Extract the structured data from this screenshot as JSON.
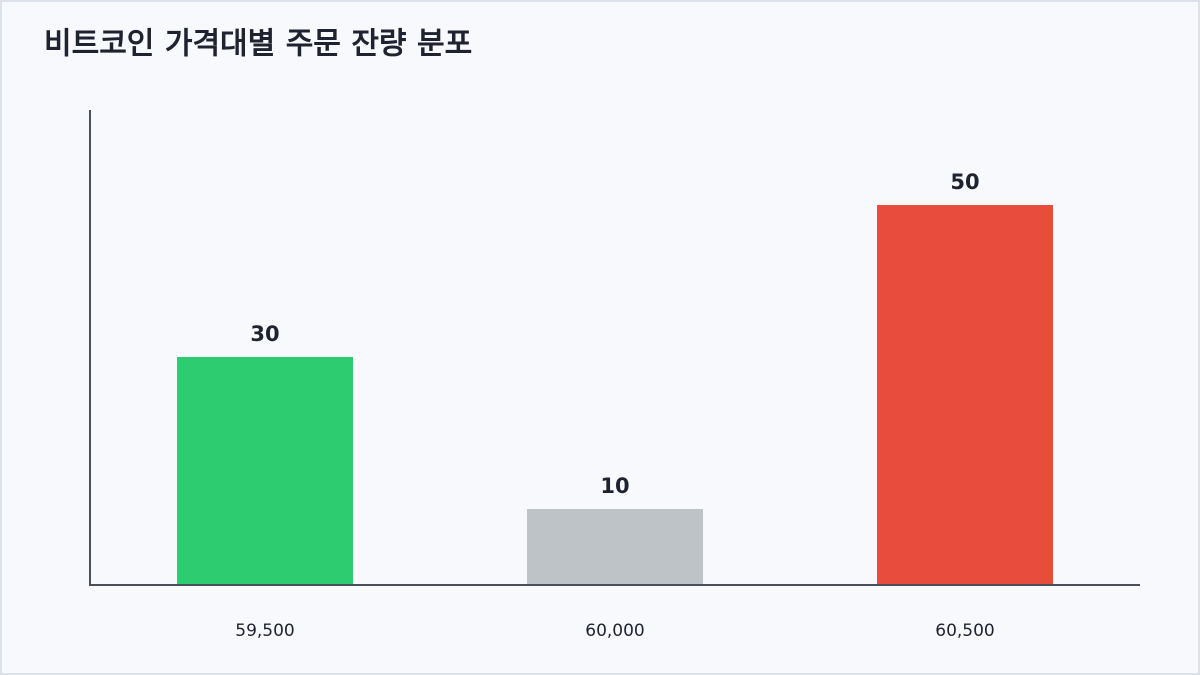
{
  "chart_data": {
    "type": "bar",
    "title": "비트코인 가격대별 주문 잔량 분포",
    "categories": [
      "59,500",
      "60,000",
      "60,500"
    ],
    "values": [
      30,
      10,
      50
    ],
    "colors": [
      "#2ecc71",
      "#bdc3c7",
      "#e74c3c"
    ],
    "ylim": [
      0,
      62.5
    ]
  }
}
